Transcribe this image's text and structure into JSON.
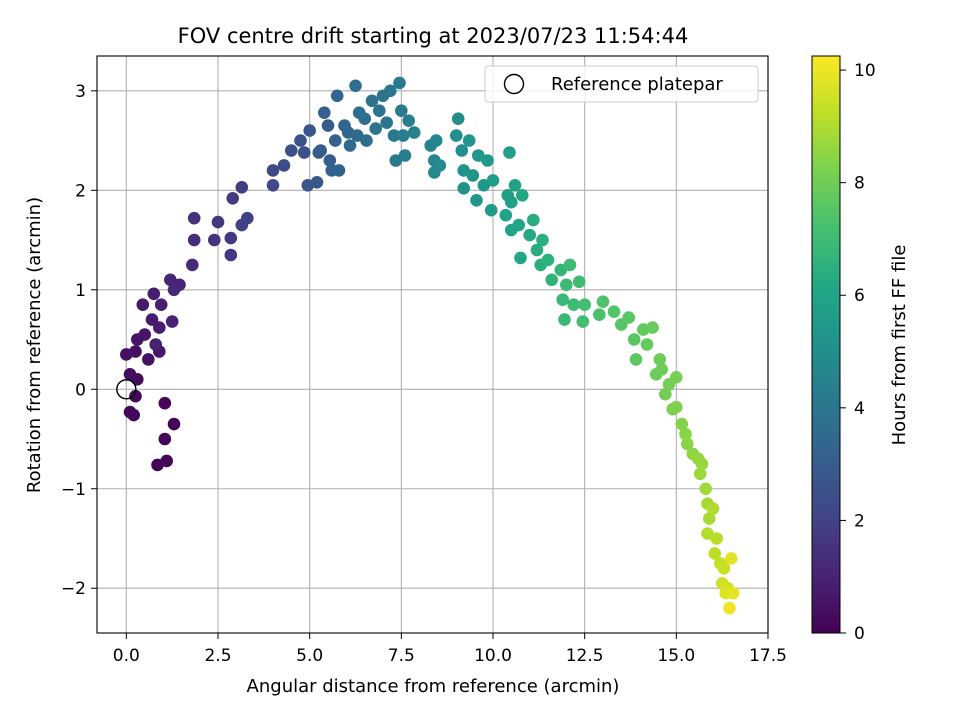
{
  "chart_data": {
    "type": "scatter",
    "title": "FOV centre drift starting at 2023/07/23 11:54:44",
    "xlabel": "Angular distance from reference (arcmin)",
    "ylabel": "Rotation from reference (arcmin)",
    "xlim": [
      -0.8,
      17.5
    ],
    "ylim": [
      -2.45,
      3.35
    ],
    "xticks": [
      0.0,
      2.5,
      5.0,
      7.5,
      10.0,
      12.5,
      15.0,
      17.5
    ],
    "xtick_labels": [
      "0.0",
      "2.5",
      "5.0",
      "7.5",
      "10.0",
      "12.5",
      "15.0",
      "17.5"
    ],
    "yticks": [
      -2,
      -1,
      0,
      1,
      2,
      3
    ],
    "ytick_labels": [
      "−2",
      "−1",
      "0",
      "1",
      "2",
      "3"
    ],
    "grid": true,
    "legend": {
      "position": "top-right",
      "entries": [
        "Reference platepar"
      ]
    },
    "reference_point": {
      "x": 0.0,
      "y": 0.0,
      "label": "Reference platepar"
    },
    "colorbar": {
      "label": "Hours from first FF file",
      "colormap": "viridis",
      "range": [
        0,
        10.25
      ],
      "ticks": [
        0,
        2,
        4,
        6,
        8,
        10
      ],
      "tick_labels": [
        "0",
        "2",
        "4",
        "6",
        "8",
        "10"
      ]
    },
    "series": [
      {
        "color_by": "hours",
        "points": [
          [
            0.85,
            -0.76,
            0.05
          ],
          [
            1.1,
            -0.72,
            0.08
          ],
          [
            1.3,
            -0.35,
            0.1
          ],
          [
            1.05,
            -0.5,
            0.12
          ],
          [
            1.05,
            -0.14,
            0.15
          ],
          [
            0.2,
            -0.26,
            0.2
          ],
          [
            0.1,
            -0.23,
            0.22
          ],
          [
            0.25,
            -0.07,
            0.25
          ],
          [
            0.3,
            0.1,
            0.3
          ],
          [
            0.1,
            0.15,
            0.35
          ],
          [
            0.0,
            0.35,
            0.4
          ],
          [
            0.25,
            0.38,
            0.45
          ],
          [
            0.6,
            0.3,
            0.5
          ],
          [
            0.3,
            0.5,
            0.55
          ],
          [
            0.5,
            0.55,
            0.6
          ],
          [
            0.9,
            0.38,
            0.65
          ],
          [
            0.7,
            0.7,
            0.7
          ],
          [
            0.45,
            0.85,
            0.75
          ],
          [
            0.9,
            0.62,
            0.8
          ],
          [
            0.75,
            0.96,
            0.85
          ],
          [
            0.95,
            0.85,
            0.9
          ],
          [
            0.8,
            0.45,
            0.95
          ],
          [
            1.25,
            0.68,
            1.0
          ],
          [
            1.2,
            1.1,
            1.05
          ],
          [
            1.45,
            1.05,
            1.1
          ],
          [
            1.3,
            1.0,
            1.15
          ],
          [
            1.8,
            1.25,
            1.25
          ],
          [
            1.85,
            1.5,
            1.35
          ],
          [
            1.85,
            1.72,
            1.45
          ],
          [
            2.4,
            1.5,
            1.55
          ],
          [
            2.5,
            1.68,
            1.6
          ],
          [
            2.85,
            1.35,
            1.65
          ],
          [
            2.85,
            1.52,
            1.7
          ],
          [
            2.9,
            1.92,
            1.75
          ],
          [
            3.15,
            2.03,
            1.85
          ],
          [
            3.3,
            1.72,
            1.9
          ],
          [
            3.15,
            1.65,
            1.95
          ],
          [
            4.0,
            2.05,
            2.2
          ],
          [
            4.0,
            2.2,
            2.25
          ],
          [
            4.3,
            2.25,
            2.35
          ],
          [
            4.5,
            2.4,
            2.45
          ],
          [
            4.85,
            2.38,
            2.5
          ],
          [
            4.75,
            2.5,
            2.6
          ],
          [
            5.0,
            2.6,
            2.7
          ],
          [
            4.95,
            2.05,
            2.75
          ],
          [
            5.2,
            2.08,
            2.8
          ],
          [
            5.25,
            2.38,
            2.85
          ],
          [
            5.5,
            2.65,
            2.9
          ],
          [
            5.3,
            2.4,
            3.0
          ],
          [
            5.55,
            2.3,
            3.05
          ],
          [
            5.4,
            2.78,
            3.1
          ],
          [
            5.7,
            2.5,
            3.15
          ],
          [
            5.6,
            2.2,
            3.2
          ],
          [
            5.8,
            2.2,
            3.25
          ],
          [
            5.75,
            2.95,
            3.3
          ],
          [
            5.95,
            2.65,
            3.35
          ],
          [
            6.05,
            2.58,
            3.4
          ],
          [
            6.1,
            2.45,
            3.5
          ],
          [
            6.3,
            2.55,
            3.55
          ],
          [
            6.25,
            3.05,
            3.6
          ],
          [
            6.35,
            2.78,
            3.65
          ],
          [
            6.5,
            2.72,
            3.7
          ],
          [
            6.55,
            2.5,
            3.75
          ],
          [
            6.7,
            2.9,
            3.8
          ],
          [
            6.8,
            2.62,
            3.85
          ],
          [
            6.9,
            2.8,
            3.9
          ],
          [
            7.0,
            2.95,
            3.95
          ],
          [
            7.1,
            2.68,
            4.0
          ],
          [
            7.2,
            3.0,
            4.05
          ],
          [
            7.3,
            2.55,
            4.1
          ],
          [
            7.35,
            2.3,
            4.15
          ],
          [
            7.45,
            3.08,
            4.2
          ],
          [
            7.5,
            2.8,
            4.25
          ],
          [
            7.55,
            2.55,
            4.3
          ],
          [
            7.7,
            2.7,
            4.35
          ],
          [
            7.6,
            2.35,
            4.4
          ],
          [
            7.85,
            2.58,
            4.45
          ],
          [
            8.3,
            2.45,
            4.6
          ],
          [
            8.45,
            2.5,
            4.7
          ],
          [
            8.4,
            2.3,
            4.75
          ],
          [
            8.4,
            2.18,
            4.8
          ],
          [
            8.55,
            2.25,
            4.85
          ],
          [
            9.05,
            2.72,
            5.0
          ],
          [
            9.0,
            2.55,
            5.05
          ],
          [
            9.15,
            2.4,
            5.1
          ],
          [
            9.2,
            2.2,
            5.15
          ],
          [
            9.2,
            2.02,
            5.2
          ],
          [
            9.35,
            2.5,
            5.25
          ],
          [
            9.45,
            2.15,
            5.3
          ],
          [
            9.6,
            2.35,
            5.35
          ],
          [
            9.55,
            1.9,
            5.4
          ],
          [
            9.75,
            2.05,
            5.45
          ],
          [
            9.85,
            2.3,
            5.5
          ],
          [
            9.95,
            1.8,
            5.55
          ],
          [
            10.0,
            2.1,
            5.6
          ],
          [
            10.45,
            2.38,
            5.7
          ],
          [
            10.4,
            1.95,
            5.75
          ],
          [
            10.5,
            1.88,
            5.8
          ],
          [
            10.6,
            2.05,
            5.85
          ],
          [
            10.35,
            1.75,
            5.9
          ],
          [
            10.5,
            1.6,
            5.95
          ],
          [
            10.7,
            1.65,
            6.0
          ],
          [
            10.75,
            1.32,
            6.05
          ],
          [
            10.8,
            1.95,
            6.1
          ],
          [
            11.0,
            1.55,
            6.2
          ],
          [
            11.1,
            1.7,
            6.3
          ],
          [
            11.2,
            1.4,
            6.35
          ],
          [
            11.3,
            1.25,
            6.4
          ],
          [
            11.35,
            1.5,
            6.45
          ],
          [
            11.5,
            1.3,
            6.55
          ],
          [
            11.6,
            1.1,
            6.6
          ],
          [
            11.85,
            1.2,
            6.7
          ],
          [
            11.9,
            0.9,
            6.8
          ],
          [
            11.95,
            0.7,
            6.85
          ],
          [
            12.0,
            1.05,
            6.9
          ],
          [
            12.1,
            1.25,
            6.95
          ],
          [
            12.2,
            0.85,
            7.0
          ],
          [
            12.35,
            1.08,
            7.05
          ],
          [
            12.45,
            0.68,
            7.1
          ],
          [
            12.5,
            0.85,
            7.15
          ],
          [
            12.9,
            0.75,
            7.3
          ],
          [
            13.0,
            0.88,
            7.35
          ],
          [
            13.3,
            0.78,
            7.45
          ],
          [
            13.5,
            0.65,
            7.5
          ],
          [
            13.7,
            0.72,
            7.55
          ],
          [
            13.85,
            0.5,
            7.6
          ],
          [
            13.9,
            0.3,
            7.65
          ],
          [
            14.1,
            0.6,
            7.75
          ],
          [
            14.2,
            0.45,
            7.8
          ],
          [
            14.35,
            0.62,
            7.85
          ],
          [
            14.45,
            0.15,
            7.9
          ],
          [
            14.55,
            0.3,
            7.95
          ],
          [
            14.6,
            0.2,
            8.0
          ],
          [
            14.7,
            -0.05,
            8.05
          ],
          [
            14.8,
            0.05,
            8.1
          ],
          [
            15.0,
            0.12,
            8.15
          ],
          [
            14.9,
            -0.2,
            8.2
          ],
          [
            15.0,
            -0.18,
            8.25
          ],
          [
            15.15,
            -0.35,
            8.35
          ],
          [
            15.25,
            -0.45,
            8.4
          ],
          [
            15.3,
            -0.55,
            8.45
          ],
          [
            15.45,
            -0.65,
            8.5
          ],
          [
            15.6,
            -0.7,
            8.6
          ],
          [
            15.7,
            -0.75,
            8.65
          ],
          [
            15.65,
            -0.85,
            8.7
          ],
          [
            15.8,
            -1.0,
            8.8
          ],
          [
            15.85,
            -1.15,
            8.85
          ],
          [
            15.9,
            -1.3,
            8.9
          ],
          [
            16.0,
            -1.2,
            9.0
          ],
          [
            15.85,
            -1.45,
            9.05
          ],
          [
            16.1,
            -1.5,
            9.15
          ],
          [
            16.05,
            -1.65,
            9.2
          ],
          [
            16.2,
            -1.75,
            9.3
          ],
          [
            16.3,
            -1.8,
            9.4
          ],
          [
            16.25,
            -1.95,
            9.5
          ],
          [
            16.4,
            -2.0,
            9.6
          ],
          [
            16.35,
            -2.05,
            9.7
          ],
          [
            16.55,
            -2.05,
            9.85
          ],
          [
            16.45,
            -2.2,
            10.0
          ],
          [
            16.5,
            -1.7,
            9.8
          ]
        ]
      }
    ]
  }
}
